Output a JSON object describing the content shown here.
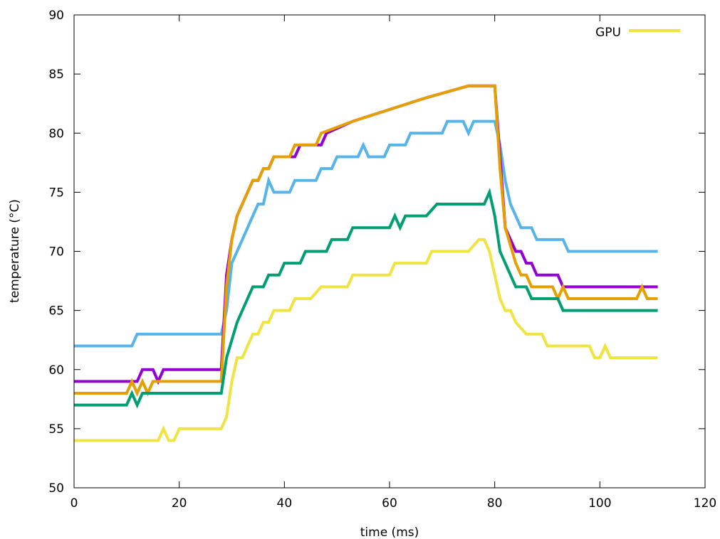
{
  "chart_data": {
    "type": "line",
    "title": "",
    "xlabel": "time (ms)",
    "ylabel": "temperature (°C)",
    "xlim": [
      0,
      120
    ],
    "ylim": [
      50,
      90
    ],
    "xticks": [
      0,
      20,
      40,
      60,
      80,
      100,
      120
    ],
    "yticks": [
      50,
      55,
      60,
      65,
      70,
      75,
      80,
      85,
      90
    ],
    "grid": false,
    "legend": {
      "position": "top-right",
      "entries": [
        "GPU"
      ]
    },
    "series": [
      {
        "color": "#56b4e9",
        "points": [
          [
            0,
            62
          ],
          [
            11,
            62
          ],
          [
            12,
            63
          ],
          [
            28,
            63
          ],
          [
            29,
            65
          ],
          [
            30,
            69
          ],
          [
            32,
            71
          ],
          [
            34,
            73
          ],
          [
            35,
            74
          ],
          [
            36,
            74
          ],
          [
            37,
            76
          ],
          [
            38,
            75
          ],
          [
            41,
            75
          ],
          [
            42,
            76
          ],
          [
            46,
            76
          ],
          [
            47,
            77
          ],
          [
            49,
            77
          ],
          [
            50,
            78
          ],
          [
            54,
            78
          ],
          [
            55,
            79
          ],
          [
            56,
            78
          ],
          [
            59,
            78
          ],
          [
            60,
            79
          ],
          [
            63,
            79
          ],
          [
            64,
            80
          ],
          [
            70,
            80
          ],
          [
            71,
            81
          ],
          [
            74,
            81
          ],
          [
            75,
            80
          ],
          [
            76,
            81
          ],
          [
            80,
            81
          ],
          [
            81,
            79
          ],
          [
            82,
            76
          ],
          [
            83,
            74
          ],
          [
            85,
            72
          ],
          [
            87,
            72
          ],
          [
            88,
            71
          ],
          [
            93,
            71
          ],
          [
            94,
            70
          ],
          [
            111,
            70
          ]
        ]
      },
      {
        "color": "#9400d3",
        "points": [
          [
            0,
            59
          ],
          [
            12,
            59
          ],
          [
            13,
            60
          ],
          [
            15,
            60
          ],
          [
            16,
            59
          ],
          [
            17,
            60
          ],
          [
            28,
            60
          ],
          [
            29,
            68
          ],
          [
            30,
            71
          ],
          [
            31,
            73
          ],
          [
            33,
            75
          ],
          [
            34,
            76
          ],
          [
            35,
            76
          ],
          [
            36,
            77
          ],
          [
            37,
            77
          ],
          [
            38,
            78
          ],
          [
            40,
            78
          ],
          [
            41,
            78
          ],
          [
            42,
            78
          ],
          [
            43,
            79
          ],
          [
            46,
            79
          ],
          [
            47,
            79
          ],
          [
            48,
            80
          ],
          [
            53,
            81
          ],
          [
            60,
            82
          ],
          [
            67,
            83
          ],
          [
            75,
            84
          ],
          [
            79,
            84
          ],
          [
            80,
            84
          ],
          [
            81,
            78
          ],
          [
            82,
            72
          ],
          [
            84,
            70
          ],
          [
            85,
            70
          ],
          [
            86,
            69
          ],
          [
            87,
            69
          ],
          [
            88,
            68
          ],
          [
            92,
            68
          ],
          [
            93,
            67
          ],
          [
            111,
            67
          ]
        ]
      },
      {
        "color": "#e69f00",
        "points": [
          [
            0,
            58
          ],
          [
            10,
            58
          ],
          [
            11,
            59
          ],
          [
            12,
            58
          ],
          [
            13,
            59
          ],
          [
            14,
            58
          ],
          [
            15,
            59
          ],
          [
            28,
            59
          ],
          [
            29,
            67
          ],
          [
            30,
            71
          ],
          [
            31,
            73
          ],
          [
            33,
            75
          ],
          [
            34,
            76
          ],
          [
            35,
            76
          ],
          [
            36,
            77
          ],
          [
            37,
            77
          ],
          [
            38,
            78
          ],
          [
            40,
            78
          ],
          [
            41,
            78
          ],
          [
            42,
            79
          ],
          [
            45,
            79
          ],
          [
            46,
            79
          ],
          [
            47,
            80
          ],
          [
            53,
            81
          ],
          [
            60,
            82
          ],
          [
            67,
            83
          ],
          [
            75,
            84
          ],
          [
            79,
            84
          ],
          [
            80,
            84
          ],
          [
            81,
            77
          ],
          [
            82,
            72
          ],
          [
            84,
            69
          ],
          [
            85,
            68
          ],
          [
            86,
            68
          ],
          [
            87,
            67
          ],
          [
            91,
            67
          ],
          [
            92,
            66
          ],
          [
            93,
            67
          ],
          [
            94,
            66
          ],
          [
            107,
            66
          ],
          [
            108,
            67
          ],
          [
            109,
            66
          ],
          [
            111,
            66
          ]
        ]
      },
      {
        "color": "#009e73",
        "points": [
          [
            0,
            57
          ],
          [
            10,
            57
          ],
          [
            11,
            58
          ],
          [
            12,
            57
          ],
          [
            13,
            58
          ],
          [
            28,
            58
          ],
          [
            29,
            61
          ],
          [
            31,
            64
          ],
          [
            33,
            66
          ],
          [
            34,
            67
          ],
          [
            36,
            67
          ],
          [
            37,
            68
          ],
          [
            39,
            68
          ],
          [
            40,
            69
          ],
          [
            43,
            69
          ],
          [
            44,
            70
          ],
          [
            48,
            70
          ],
          [
            49,
            71
          ],
          [
            52,
            71
          ],
          [
            53,
            72
          ],
          [
            60,
            72
          ],
          [
            61,
            73
          ],
          [
            62,
            72
          ],
          [
            63,
            73
          ],
          [
            67,
            73
          ],
          [
            69,
            74
          ],
          [
            78,
            74
          ],
          [
            79,
            75
          ],
          [
            80,
            73
          ],
          [
            81,
            70
          ],
          [
            84,
            67
          ],
          [
            86,
            67
          ],
          [
            87,
            66
          ],
          [
            92,
            66
          ],
          [
            93,
            65
          ],
          [
            111,
            65
          ]
        ]
      },
      {
        "name": "GPU",
        "color": "#f0e442",
        "points": [
          [
            0,
            54
          ],
          [
            16,
            54
          ],
          [
            17,
            55
          ],
          [
            18,
            54
          ],
          [
            19,
            54
          ],
          [
            20,
            55
          ],
          [
            28,
            55
          ],
          [
            29,
            56
          ],
          [
            30,
            59
          ],
          [
            31,
            61
          ],
          [
            32,
            61
          ],
          [
            33,
            62
          ],
          [
            34,
            63
          ],
          [
            35,
            63
          ],
          [
            36,
            64
          ],
          [
            37,
            64
          ],
          [
            38,
            65
          ],
          [
            40,
            65
          ],
          [
            41,
            65
          ],
          [
            42,
            66
          ],
          [
            45,
            66
          ],
          [
            47,
            67
          ],
          [
            52,
            67
          ],
          [
            53,
            68
          ],
          [
            60,
            68
          ],
          [
            61,
            69
          ],
          [
            65,
            69
          ],
          [
            67,
            69
          ],
          [
            68,
            70
          ],
          [
            75,
            70
          ],
          [
            77,
            71
          ],
          [
            78,
            71
          ],
          [
            79,
            70
          ],
          [
            80,
            68
          ],
          [
            81,
            66
          ],
          [
            82,
            65
          ],
          [
            83,
            65
          ],
          [
            84,
            64
          ],
          [
            86,
            63
          ],
          [
            89,
            63
          ],
          [
            90,
            62
          ],
          [
            98,
            62
          ],
          [
            99,
            61
          ],
          [
            100,
            61
          ],
          [
            101,
            62
          ],
          [
            102,
            61
          ],
          [
            111,
            61
          ]
        ]
      }
    ]
  }
}
